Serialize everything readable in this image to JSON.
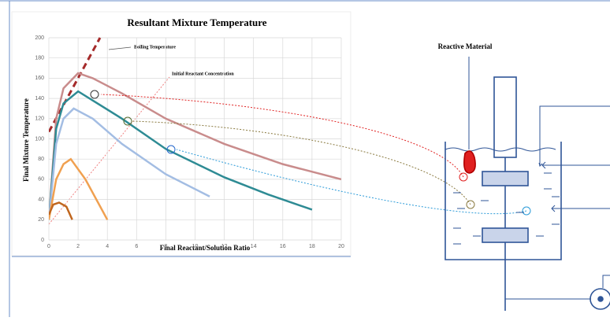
{
  "chart_data": {
    "type": "line",
    "title": "Resultant Mixture Temperature",
    "x_label": "Final Reactant/Solution Ratio",
    "y_label": "Final Mixture Temperature",
    "annotations": [
      "Boiling Temperature",
      "Initial Reactant Concentration"
    ],
    "xlim": [
      0,
      20
    ],
    "ylim": [
      0,
      200
    ],
    "xticks": [
      0,
      2,
      4,
      6,
      8,
      10,
      12,
      14,
      16,
      18,
      20
    ],
    "yticks": [
      0,
      20,
      40,
      60,
      80,
      100,
      120,
      140,
      160,
      180,
      200
    ],
    "grid": true,
    "series": [
      {
        "color": "#a52a2a",
        "dash": true,
        "x": [
          0,
          3.5
        ],
        "values": [
          107,
          200
        ]
      },
      {
        "color": "#c98c8c",
        "x": [
          0,
          0.5,
          1,
          2,
          3,
          5,
          8,
          12,
          16,
          20
        ],
        "values": [
          20,
          120,
          150,
          165,
          160,
          145,
          120,
          95,
          75,
          60
        ]
      },
      {
        "color": "#2e8b94",
        "x": [
          0,
          0.5,
          1,
          2,
          3,
          5,
          8,
          12,
          15,
          18
        ],
        "values": [
          20,
          110,
          135,
          147,
          138,
          120,
          90,
          62,
          45,
          30
        ]
      },
      {
        "color": "#a3bde3",
        "x": [
          0,
          0.5,
          1,
          1.7,
          3,
          5,
          8,
          11
        ],
        "values": [
          20,
          95,
          120,
          130,
          120,
          95,
          65,
          43
        ]
      },
      {
        "color": "#f0a050",
        "x": [
          0,
          0.5,
          1,
          1.5,
          2.5,
          4
        ],
        "values": [
          20,
          60,
          75,
          80,
          60,
          20
        ]
      },
      {
        "color": "#c0661e",
        "x": [
          0,
          0.3,
          0.7,
          1.2,
          1.6
        ],
        "values": [
          25,
          35,
          37,
          33,
          20
        ]
      }
    ]
  },
  "diagram": {
    "label": "Reactive Material"
  }
}
